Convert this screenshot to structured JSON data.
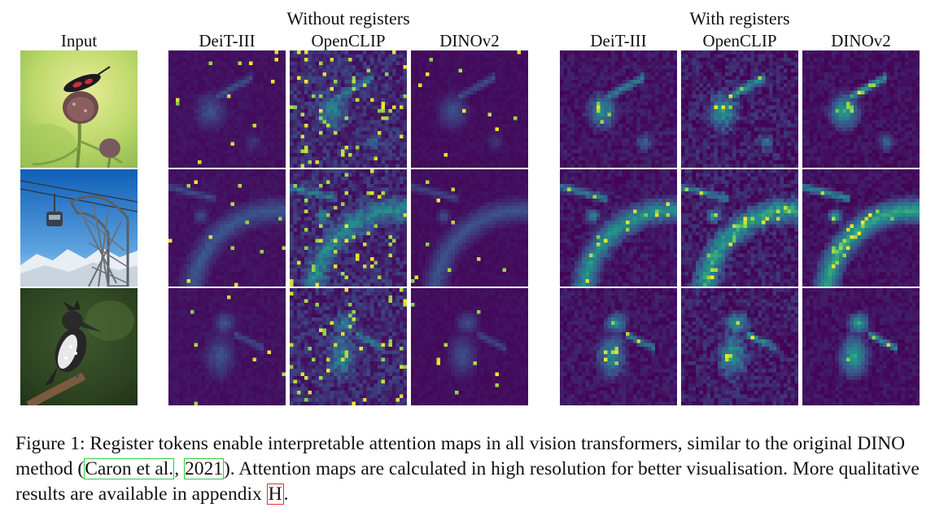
{
  "header": {
    "input_label": "Input",
    "group_without": "Without registers",
    "group_with": "With registers",
    "models": [
      "DeiT-III",
      "OpenCLIP",
      "DINOv2"
    ]
  },
  "rows": [
    {
      "subject": "insect-on-flower"
    },
    {
      "subject": "cable-car-tower"
    },
    {
      "subject": "kingfisher-bird"
    }
  ],
  "colors": {
    "viridis_low": "#440154",
    "viridis_mid": "#21918c",
    "viridis_high": "#fde725",
    "citation_box": "#2ecc40",
    "ref_box": "#e03030"
  },
  "caption": {
    "prefix": "Figure 1: Register tokens enable  interpretable attention maps in all vision transformers, similar to the original DINO method (",
    "cite_author": "Caron et al.",
    "cite_sep": ", ",
    "cite_year": "2021",
    "middle": "). Attention maps are calculated in high resolution for better visualisation. More qualitative results are available in appendix ",
    "appendix_ref": "H",
    "suffix": "."
  }
}
